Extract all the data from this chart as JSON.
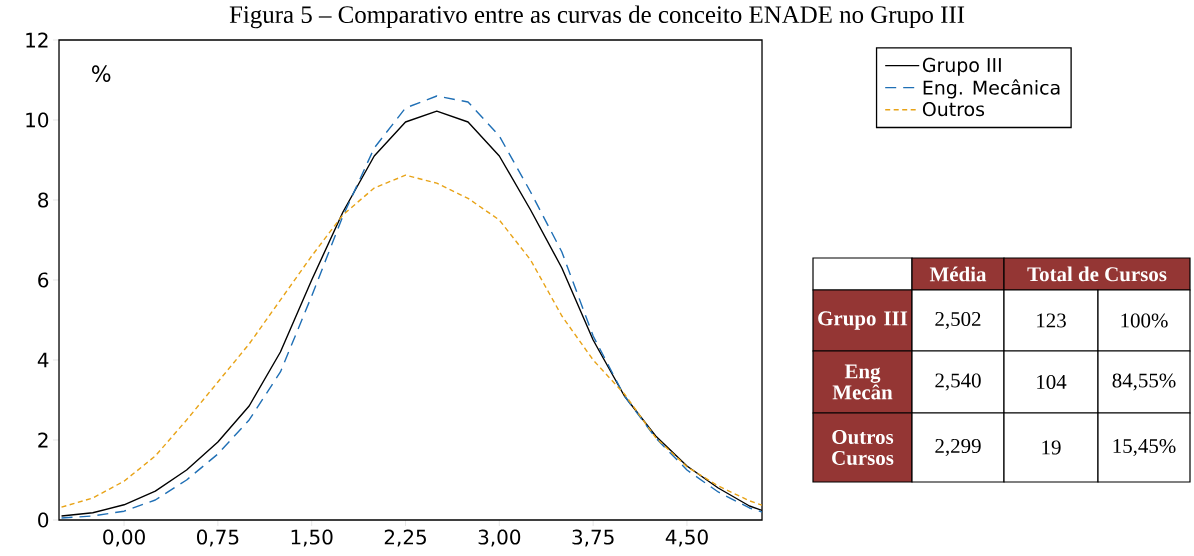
{
  "chart_data": [
    {
      "type": "line",
      "title": "Figura 5 – Comparativo entre as curvas de conceito ENADE no Grupo III",
      "ylabel": "%",
      "x": [
        -0.5,
        -0.25,
        0,
        0.25,
        0.5,
        0.75,
        1,
        1.25,
        1.5,
        1.75,
        2,
        2.25,
        2.5,
        2.75,
        3,
        3.25,
        3.5,
        3.75,
        4,
        4.25,
        4.5,
        4.75,
        5,
        5.1
      ],
      "series": [
        {
          "name": "Grupo III",
          "color": "#000000",
          "line_style": "solid",
          "values": [
            0.1,
            0.18,
            0.38,
            0.72,
            1.25,
            1.95,
            2.85,
            4.2,
            6.0,
            7.7,
            9.1,
            9.95,
            10.22,
            9.95,
            9.1,
            7.75,
            6.3,
            4.5,
            3.1,
            2.1,
            1.35,
            0.8,
            0.35,
            0.24
          ]
        },
        {
          "name": "Eng. Mecânica",
          "color": "#1f6fb5",
          "line_style": "dashed",
          "values": [
            0.05,
            0.1,
            0.22,
            0.5,
            1.0,
            1.65,
            2.5,
            3.7,
            5.6,
            7.6,
            9.3,
            10.3,
            10.6,
            10.45,
            9.6,
            8.2,
            6.7,
            4.6,
            3.1,
            2.05,
            1.25,
            0.7,
            0.3,
            0.2
          ]
        },
        {
          "name": "Outros",
          "color": "#e8a317",
          "line_style": "dashed",
          "values": [
            0.32,
            0.55,
            0.97,
            1.6,
            2.5,
            3.45,
            4.4,
            5.5,
            6.6,
            7.63,
            8.3,
            8.62,
            8.42,
            8.04,
            7.5,
            6.5,
            5.1,
            4.0,
            3.15,
            2.06,
            1.33,
            0.85,
            0.48,
            0.37
          ]
        }
      ],
      "xlim": [
        -0.52,
        5.1
      ],
      "ylim": [
        0,
        12
      ],
      "xticks": [
        {
          "value": 0,
          "label": "0,00"
        },
        {
          "value": 0.75,
          "label": "0,75"
        },
        {
          "value": 1.5,
          "label": "1,50"
        },
        {
          "value": 2.25,
          "label": "2,25"
        },
        {
          "value": 3,
          "label": "3,00"
        },
        {
          "value": 3.75,
          "label": "3,75"
        },
        {
          "value": 4.5,
          "label": "4,50"
        }
      ],
      "yticks": [
        0,
        2,
        4,
        6,
        8,
        10,
        12
      ],
      "legend": "top right"
    },
    {
      "type": "other",
      "annotations": [
        "Média",
        "Total de Cursos",
        "Grupo III",
        "2,502",
        "123",
        "100%",
        "Eng Mecân",
        "2,540",
        "104",
        "84,55%",
        "Outros Cursos",
        "2,299",
        "19",
        "15,45%"
      ]
    }
  ]
}
